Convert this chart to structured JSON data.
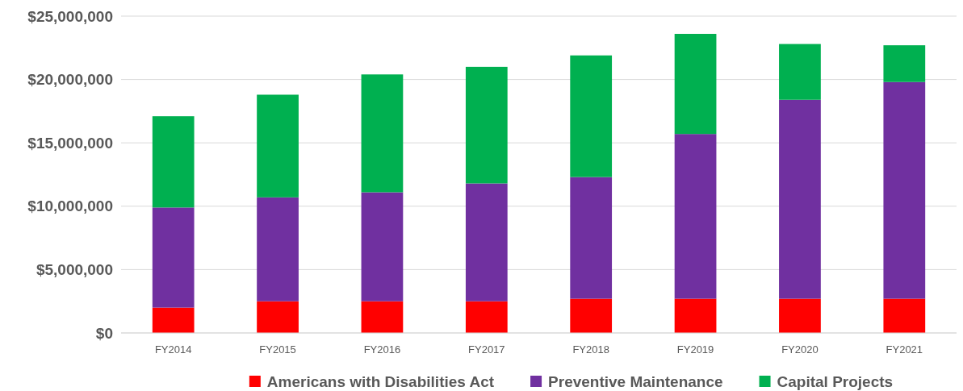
{
  "chart_data": {
    "type": "bar",
    "stacked": true,
    "categories": [
      "FY2014",
      "FY2015",
      "FY2016",
      "FY2017",
      "FY2018",
      "FY2019",
      "FY2020",
      "FY2021"
    ],
    "series": [
      {
        "name": "Americans with Disabilities Act",
        "color": "#ff0000",
        "values": [
          2000000,
          2500000,
          2500000,
          2500000,
          2700000,
          2700000,
          2700000,
          2700000
        ]
      },
      {
        "name": "Preventive Maintenance",
        "color": "#7030a0",
        "values": [
          7900000,
          8200000,
          8600000,
          9300000,
          9600000,
          13000000,
          15700000,
          17100000
        ]
      },
      {
        "name": "Capital Projects",
        "color": "#00b050",
        "values": [
          7200000,
          8100000,
          9300000,
          9200000,
          9600000,
          7900000,
          4400000,
          2900000
        ]
      }
    ],
    "ylim": [
      0,
      25000000
    ],
    "yticks": [
      {
        "value": 0,
        "label": "$0"
      },
      {
        "value": 5000000,
        "label": "$5,000,000"
      },
      {
        "value": 10000000,
        "label": "$10,000,000"
      },
      {
        "value": 15000000,
        "label": "$15,000,000"
      },
      {
        "value": 20000000,
        "label": "$20,000,000"
      },
      {
        "value": 25000000,
        "label": "$25,000,000"
      }
    ],
    "grid": "y",
    "legend": "bottom"
  }
}
